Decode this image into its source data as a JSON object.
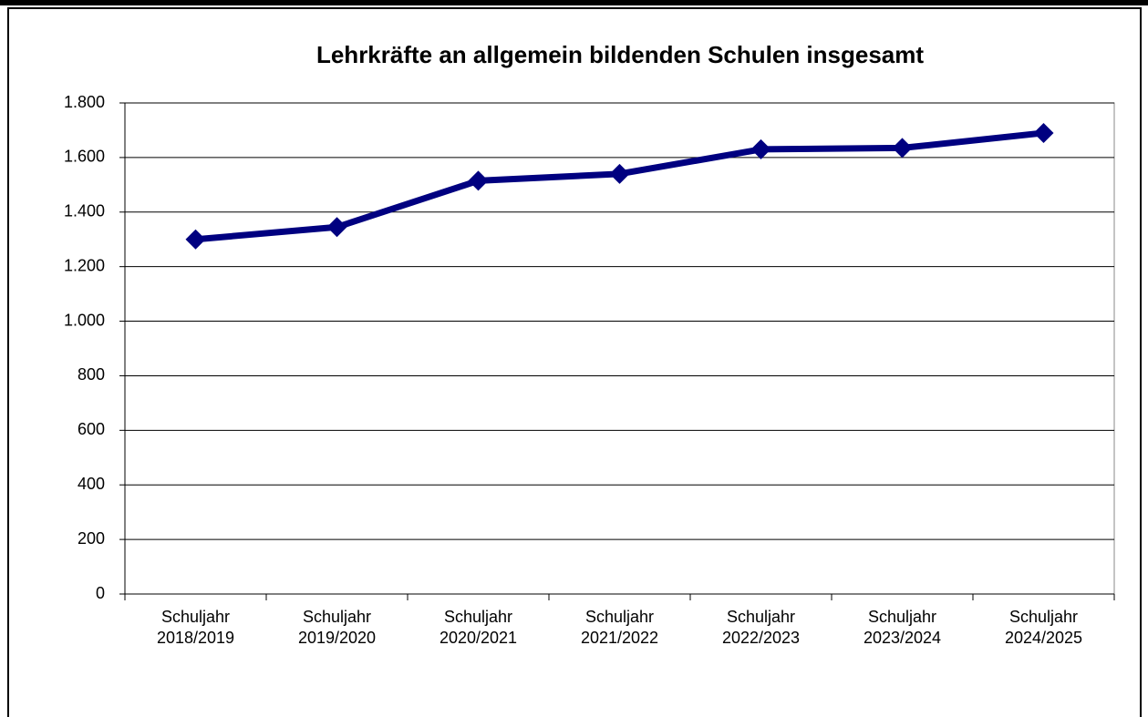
{
  "chart_data": {
    "type": "line",
    "title": "Lehrkräfte an allgemein bildenden Schulen insgesamt",
    "categories": [
      "Schuljahr 2018/2019",
      "Schuljahr 2019/2020",
      "Schuljahr 2020/2021",
      "Schuljahr 2021/2022",
      "Schuljahr 2022/2023",
      "Schuljahr 2023/2024",
      "Schuljahr 2024/2025"
    ],
    "series": [
      {
        "name": "Lehrkräfte",
        "color": "#000080",
        "values": [
          1300,
          1345,
          1515,
          1540,
          1630,
          1635,
          1690
        ]
      }
    ],
    "ylim": [
      0,
      1800
    ],
    "yticks": [
      0,
      200,
      400,
      600,
      800,
      {
        "value": 1000,
        "label": "1.000"
      },
      {
        "value": 1200,
        "label": "1.200"
      },
      {
        "value": 1400,
        "label": "1.400"
      },
      {
        "value": 1600,
        "label": "1.600"
      },
      {
        "value": 1800,
        "label": "1.800"
      }
    ],
    "grid": true
  }
}
